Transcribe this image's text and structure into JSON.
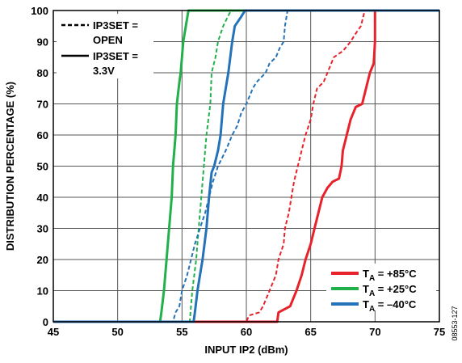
{
  "chart_data": {
    "type": "line",
    "xlabel": "INPUT IP2 (dBm)",
    "ylabel": "DISTRIBUTION PERCENTAGE (%)",
    "xlim": [
      45,
      75
    ],
    "ylim": [
      0,
      100
    ],
    "x_ticks": [
      "45",
      "50",
      "55",
      "60",
      "65",
      "70",
      "75"
    ],
    "y_ticks": [
      "0",
      "10",
      "20",
      "30",
      "40",
      "50",
      "60",
      "70",
      "80",
      "90",
      "100"
    ],
    "grid": true,
    "legend_style": {
      "placement": "top-left",
      "entries": [
        {
          "line1": "IP3SET =",
          "line2": "OPEN",
          "style": "dashed"
        },
        {
          "line1": "IP3SET =",
          "line2": "3.3V",
          "style": "solid"
        }
      ]
    },
    "legend_temp": {
      "placement": "bottom-right",
      "entries": [
        {
          "prefix": "T",
          "sub": "A",
          "suffix": " = +85°C",
          "color": "#e8222b"
        },
        {
          "prefix": "T",
          "sub": "A",
          "suffix": " = +25°C",
          "color": "#22b04a"
        },
        {
          "prefix": "T",
          "sub": "A",
          "suffix": " = –40°C",
          "color": "#2472b8"
        }
      ]
    },
    "series": [
      {
        "temp": "+85°C",
        "style": "solid",
        "color": "#e8222b",
        "points": [
          [
            45,
            0
          ],
          [
            62.4,
            0
          ],
          [
            62.5,
            3
          ],
          [
            63.4,
            5
          ],
          [
            63.9,
            10
          ],
          [
            64.3,
            15
          ],
          [
            64.6,
            20
          ],
          [
            65.0,
            25
          ],
          [
            65.3,
            30
          ],
          [
            65.6,
            35
          ],
          [
            65.9,
            40
          ],
          [
            66.3,
            43
          ],
          [
            66.7,
            45
          ],
          [
            67.2,
            46
          ],
          [
            67.4,
            50
          ],
          [
            67.5,
            55
          ],
          [
            67.8,
            60
          ],
          [
            68.1,
            65
          ],
          [
            68.5,
            69
          ],
          [
            69.0,
            70
          ],
          [
            69.3,
            75
          ],
          [
            69.6,
            80
          ],
          [
            69.9,
            83
          ],
          [
            70.0,
            90
          ],
          [
            70.0,
            100
          ]
        ]
      },
      {
        "temp": "+85°C",
        "style": "dashed",
        "color": "#e8222b",
        "points": [
          [
            45,
            0
          ],
          [
            60.0,
            0
          ],
          [
            60.2,
            2
          ],
          [
            61.0,
            3
          ],
          [
            61.3,
            5
          ],
          [
            61.8,
            10
          ],
          [
            62.3,
            15
          ],
          [
            62.5,
            20
          ],
          [
            62.9,
            25
          ],
          [
            63.0,
            30
          ],
          [
            63.3,
            35
          ],
          [
            63.5,
            40
          ],
          [
            63.7,
            45
          ],
          [
            64.0,
            50
          ],
          [
            64.3,
            55
          ],
          [
            64.6,
            60
          ],
          [
            65.0,
            65
          ],
          [
            65.2,
            70
          ],
          [
            65.5,
            75
          ],
          [
            66.0,
            77
          ],
          [
            66.3,
            80
          ],
          [
            66.8,
            85
          ],
          [
            67.5,
            87
          ],
          [
            68.1,
            90
          ],
          [
            68.4,
            92
          ],
          [
            68.9,
            95
          ],
          [
            69.2,
            100
          ],
          [
            70.0,
            100
          ]
        ]
      },
      {
        "temp": "+25°C",
        "style": "solid",
        "color": "#22b04a",
        "points": [
          [
            45,
            0
          ],
          [
            53.3,
            0
          ],
          [
            53.4,
            3
          ],
          [
            53.6,
            10
          ],
          [
            53.8,
            20
          ],
          [
            54.0,
            30
          ],
          [
            54.2,
            40
          ],
          [
            54.3,
            50
          ],
          [
            54.5,
            60
          ],
          [
            54.6,
            70
          ],
          [
            54.8,
            77
          ],
          [
            54.9,
            80
          ],
          [
            55.0,
            85
          ],
          [
            55.1,
            90
          ],
          [
            55.3,
            95
          ],
          [
            55.5,
            100
          ],
          [
            75,
            100
          ]
        ]
      },
      {
        "temp": "+25°C",
        "style": "dashed",
        "color": "#22b04a",
        "points": [
          [
            45,
            0
          ],
          [
            55.6,
            0
          ],
          [
            55.7,
            5
          ],
          [
            55.8,
            10
          ],
          [
            56.1,
            20
          ],
          [
            56.3,
            30
          ],
          [
            56.5,
            40
          ],
          [
            56.7,
            50
          ],
          [
            56.9,
            60
          ],
          [
            57.2,
            70
          ],
          [
            57.3,
            80
          ],
          [
            57.6,
            85
          ],
          [
            57.8,
            90
          ],
          [
            58.2,
            95
          ],
          [
            58.8,
            100
          ],
          [
            75,
            100
          ]
        ]
      },
      {
        "temp": "–40°C",
        "style": "solid",
        "color": "#2472b8",
        "points": [
          [
            45,
            0
          ],
          [
            55.9,
            0
          ],
          [
            56.0,
            3
          ],
          [
            56.2,
            10
          ],
          [
            56.4,
            15
          ],
          [
            56.6,
            20
          ],
          [
            56.9,
            30
          ],
          [
            57.1,
            40
          ],
          [
            57.3,
            48
          ],
          [
            57.5,
            50
          ],
          [
            57.8,
            55
          ],
          [
            58.0,
            60
          ],
          [
            58.2,
            70
          ],
          [
            58.4,
            75
          ],
          [
            58.6,
            80
          ],
          [
            58.9,
            90
          ],
          [
            59.1,
            95
          ],
          [
            59.6,
            98
          ],
          [
            59.9,
            100
          ],
          [
            75,
            100
          ]
        ]
      },
      {
        "temp": "–40°C",
        "style": "dashed",
        "color": "#2472b8",
        "points": [
          [
            45,
            0
          ],
          [
            54.3,
            0
          ],
          [
            54.5,
            3
          ],
          [
            54.8,
            5
          ],
          [
            55.0,
            10
          ],
          [
            55.4,
            15
          ],
          [
            55.7,
            20
          ],
          [
            56.0,
            25
          ],
          [
            56.4,
            30
          ],
          [
            56.8,
            35
          ],
          [
            57.1,
            40
          ],
          [
            57.4,
            45
          ],
          [
            57.8,
            50
          ],
          [
            58.4,
            55
          ],
          [
            58.9,
            60
          ],
          [
            59.3,
            63
          ],
          [
            59.6,
            67
          ],
          [
            60.0,
            70
          ],
          [
            60.5,
            75
          ],
          [
            60.8,
            77
          ],
          [
            61.5,
            80
          ],
          [
            61.8,
            83
          ],
          [
            62.3,
            85
          ],
          [
            62.6,
            88
          ],
          [
            62.9,
            90
          ],
          [
            63.0,
            95
          ],
          [
            63.2,
            100
          ],
          [
            75,
            100
          ]
        ]
      }
    ]
  },
  "figure_id": "08553-127"
}
